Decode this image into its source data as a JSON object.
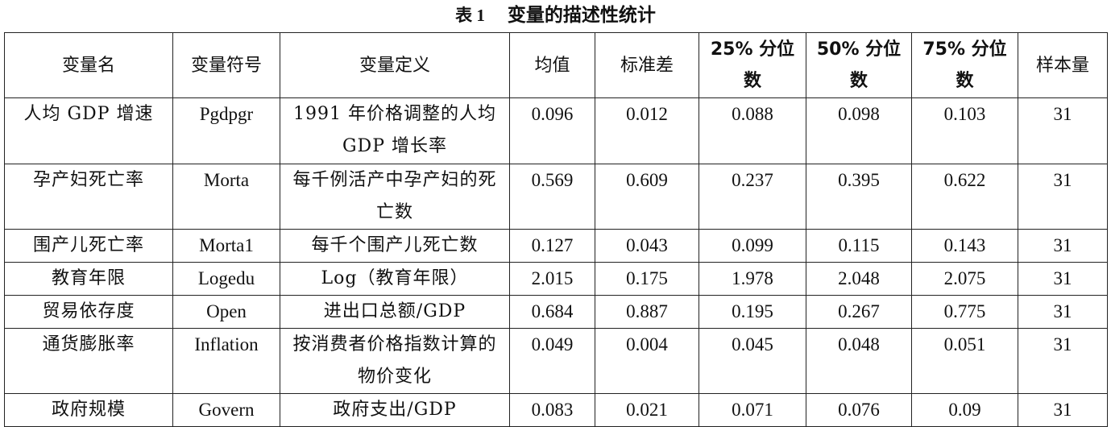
{
  "caption": {
    "label": "表 1",
    "title": "变量的描述性统计"
  },
  "table": {
    "headers": [
      "变量名",
      "变量符号",
      "变量定义",
      "均值",
      "标准差",
      "25% 分位数",
      "50% 分位数",
      "75% 分位数",
      "样本量"
    ],
    "rows": [
      {
        "name": "人均 GDP 增速",
        "symbol": "Pgdpgr",
        "definition": "1991 年价格调整的人均 GDP 增长率",
        "mean": "0.096",
        "sd": "0.012",
        "p25": "0.088",
        "p50": "0.098",
        "p75": "0.103",
        "n": "31"
      },
      {
        "name": "孕产妇死亡率",
        "symbol": "Morta",
        "definition": "每千例活产中孕产妇的死亡数",
        "mean": "0.569",
        "sd": "0.609",
        "p25": "0.237",
        "p50": "0.395",
        "p75": "0.622",
        "n": "31"
      },
      {
        "name": "围产儿死亡率",
        "symbol": "Morta1",
        "definition": "每千个围产儿死亡数",
        "mean": "0.127",
        "sd": "0.043",
        "p25": "0.099",
        "p50": "0.115",
        "p75": "0.143",
        "n": "31"
      },
      {
        "name": "教育年限",
        "symbol": "Logedu",
        "definition": "Log（教育年限）",
        "mean": "2.015",
        "sd": "0.175",
        "p25": "1.978",
        "p50": "2.048",
        "p75": "2.075",
        "n": "31"
      },
      {
        "name": "贸易依存度",
        "symbol": "Open",
        "definition": "进出口总额/GDP",
        "mean": "0.684",
        "sd": "0.887",
        "p25": "0.195",
        "p50": "0.267",
        "p75": "0.775",
        "n": "31"
      },
      {
        "name": "通货膨胀率",
        "symbol": "Inflation",
        "definition": "按消费者价格指数计算的物价变化",
        "mean": "0.049",
        "sd": "0.004",
        "p25": "0.045",
        "p50": "0.048",
        "p75": "0.051",
        "n": "31"
      },
      {
        "name": "政府规模",
        "symbol": "Govern",
        "definition": "政府支出/GDP",
        "mean": "0.083",
        "sd": "0.021",
        "p25": "0.071",
        "p50": "0.076",
        "p75": "0.09",
        "n": "31"
      }
    ]
  }
}
